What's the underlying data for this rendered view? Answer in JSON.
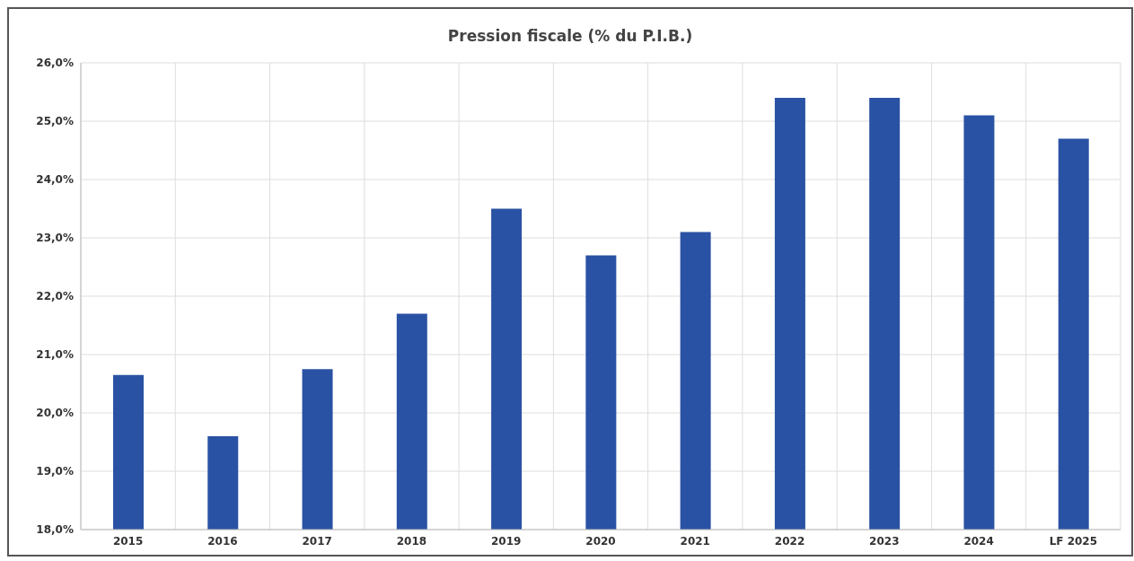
{
  "chart_data": {
    "type": "bar",
    "title": "Pression fiscale (% du P.I.B.)",
    "categories": [
      "2015",
      "2016",
      "2017",
      "2018",
      "2019",
      "2020",
      "2021",
      "2022",
      "2023",
      "2024",
      "LF 2025"
    ],
    "values": [
      20.65,
      19.6,
      20.75,
      21.7,
      23.5,
      22.7,
      23.1,
      25.4,
      25.4,
      25.1,
      24.7
    ],
    "color": "#2a52a4",
    "ylim": [
      18,
      26
    ],
    "yticks": [
      {
        "value": 18,
        "label": "18,0%"
      },
      {
        "value": 19,
        "label": "19,0%"
      },
      {
        "value": 20,
        "label": "20,0%"
      },
      {
        "value": 21,
        "label": "21,0%"
      },
      {
        "value": 22,
        "label": "22,0%"
      },
      {
        "value": 23,
        "label": "23,0%"
      },
      {
        "value": 24,
        "label": "24,0%"
      },
      {
        "value": 25,
        "label": "25,0%"
      },
      {
        "value": 26,
        "label": "26,0%"
      }
    ],
    "grid": true
  }
}
